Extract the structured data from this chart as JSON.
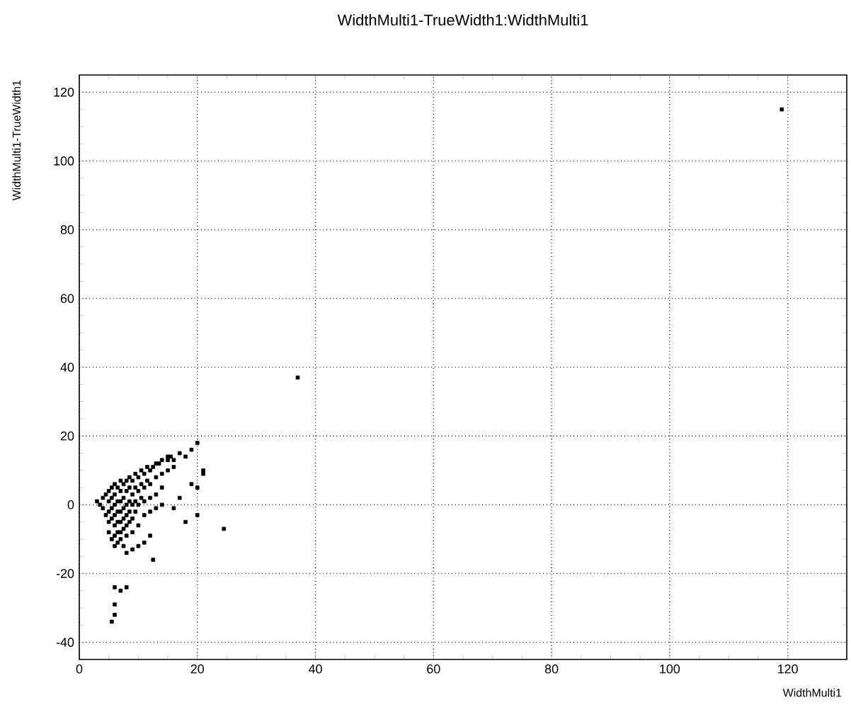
{
  "chart_data": {
    "type": "scatter",
    "title": "WidthMulti1-TrueWidth1:WidthMulti1",
    "xlabel": "WidthMulti1",
    "ylabel": "WidthMulti1-TrueWidth1",
    "xlim": [
      0,
      130
    ],
    "ylim": [
      -45,
      125
    ],
    "xticks": [
      0,
      20,
      40,
      60,
      80,
      100,
      120
    ],
    "yticks": [
      -40,
      -20,
      0,
      20,
      40,
      60,
      80,
      100,
      120
    ],
    "grid": true,
    "marker": "square",
    "series": [
      {
        "color": "#000000",
        "x": [
          3,
          3.5,
          4,
          4,
          4.5,
          4.5,
          5,
          5,
          5,
          5,
          5,
          5.5,
          5.5,
          5.5,
          5.5,
          5.5,
          6,
          6,
          6,
          6,
          6,
          6,
          6,
          6.5,
          6.5,
          6.5,
          6.5,
          6.5,
          6.5,
          7,
          7,
          7,
          7,
          7,
          7,
          7,
          7.5,
          7.5,
          7.5,
          7.5,
          7.5,
          7.5,
          8,
          8,
          8,
          8,
          8,
          8,
          8.5,
          8.5,
          8.5,
          8.5,
          8.5,
          9,
          9,
          9,
          9,
          9,
          9.5,
          9.5,
          9.5,
          9.5,
          10,
          10,
          10,
          10,
          10.5,
          10.5,
          10.5,
          11,
          11,
          11,
          11,
          11.5,
          11.5,
          12,
          12,
          12,
          12,
          12,
          12.5,
          13,
          13,
          13,
          13,
          13.5,
          14,
          14,
          14,
          14,
          15,
          15,
          15,
          15.5,
          16,
          16,
          16,
          17,
          17,
          18,
          18,
          19,
          19,
          20,
          20,
          21,
          21,
          20,
          24.5,
          9,
          10,
          11,
          12.5,
          8,
          6,
          7,
          8,
          6,
          6,
          5.5,
          37,
          119
        ],
        "values": [
          1,
          0,
          2,
          -1,
          3,
          -3,
          4,
          1,
          -2,
          -5,
          -8,
          5,
          2,
          -1,
          -4,
          -10,
          6,
          3,
          0,
          -3,
          -6,
          -9,
          -12,
          5,
          1,
          -2,
          -5,
          -8,
          -11,
          7,
          4,
          1,
          -2,
          -5,
          -8,
          -10,
          6,
          2,
          -1,
          -4,
          -7,
          -12,
          7,
          4,
          0,
          -3,
          -6,
          -9,
          8,
          5,
          1,
          -2,
          -5,
          7,
          3,
          0,
          -4,
          -8,
          9,
          5,
          1,
          -2,
          8,
          4,
          0,
          -6,
          10,
          6,
          2,
          9,
          5,
          1,
          -3,
          11,
          7,
          10,
          6,
          2,
          -2,
          -9,
          11,
          12,
          8,
          3,
          -1,
          12,
          13,
          9,
          5,
          0,
          13,
          14,
          10,
          14,
          13,
          11,
          -1,
          15,
          2,
          14,
          -5,
          6,
          16,
          18,
          5,
          9,
          10,
          -3,
          -7,
          -13,
          -12,
          -11,
          -16,
          -14,
          -24,
          -25,
          -24,
          -29,
          -32,
          -34,
          37,
          115
        ]
      }
    ]
  }
}
